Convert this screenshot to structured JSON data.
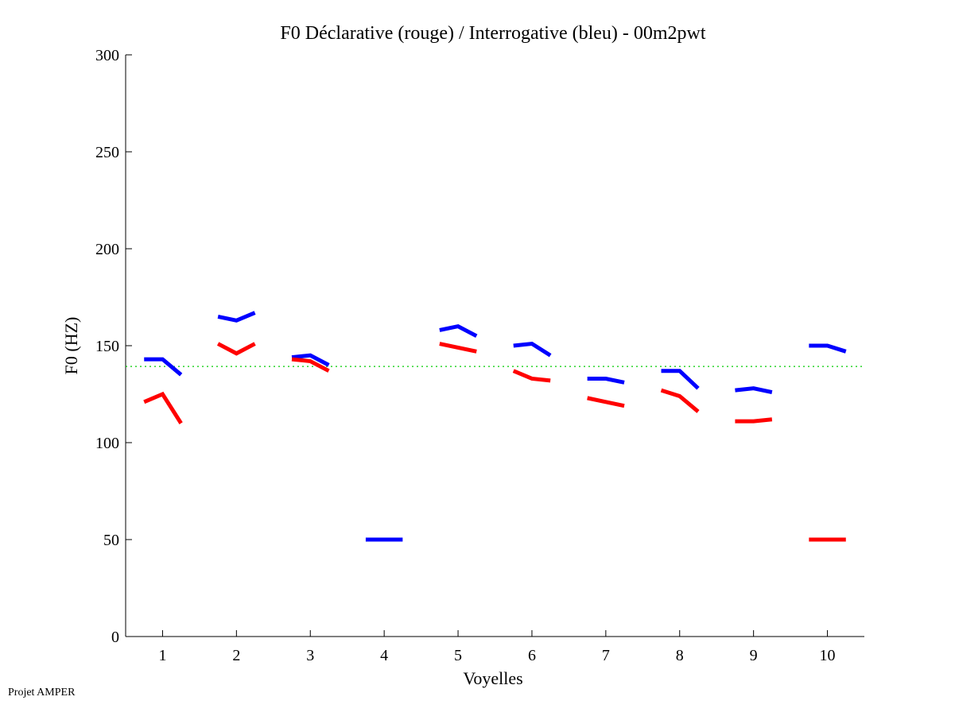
{
  "chart_data": {
    "type": "line",
    "title": "F0 Déclarative (rouge) / Interrogative (bleu) - 00m2pwt",
    "xlabel": "Voyelles",
    "ylabel": "F0 (HZ)",
    "xlim": [
      0.5,
      10.5
    ],
    "ylim": [
      0,
      300
    ],
    "xticks": [
      "1",
      "2",
      "3",
      "4",
      "5",
      "6",
      "7",
      "8",
      "9",
      "10"
    ],
    "yticks": [
      "0",
      "50",
      "100",
      "150",
      "200",
      "250",
      "300"
    ],
    "grid": false,
    "reference_line": {
      "value": 139.3,
      "color": "#00cc00",
      "style": "dotted"
    },
    "point_offsets": [
      -0.25,
      0,
      0.25
    ],
    "series": [
      {
        "name": "Interrogative (bleu)",
        "color": "#0000ff",
        "segments": [
          [
            143,
            143,
            135
          ],
          [
            165,
            163,
            167
          ],
          [
            144,
            145,
            140
          ],
          [
            50,
            50,
            50
          ],
          [
            158,
            160,
            155
          ],
          [
            150,
            151,
            145
          ],
          [
            133,
            133,
            131
          ],
          [
            137,
            137,
            128
          ],
          [
            127,
            128,
            126
          ],
          [
            150,
            150,
            147
          ]
        ]
      },
      {
        "name": "Déclarative (rouge)",
        "color": "#ff0000",
        "segments": [
          [
            121,
            125,
            110
          ],
          [
            151,
            146,
            151
          ],
          [
            143,
            142,
            137
          ],
          [
            null,
            null,
            null
          ],
          [
            151,
            149,
            147
          ],
          [
            137,
            133,
            132
          ],
          [
            123,
            121,
            119
          ],
          [
            127,
            124,
            116
          ],
          [
            111,
            111,
            112
          ],
          [
            50,
            50,
            50
          ]
        ]
      }
    ]
  },
  "footer": "Projet AMPER"
}
